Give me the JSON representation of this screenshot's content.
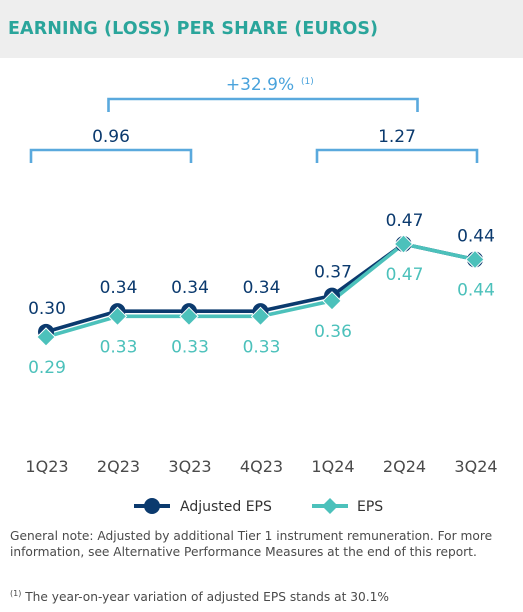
{
  "title": "EARNING (LOSS) PER SHARE (EUROS)",
  "chart_data": {
    "type": "line",
    "categories": [
      "1Q23",
      "2Q23",
      "3Q23",
      "4Q23",
      "1Q24",
      "2Q24",
      "3Q24"
    ],
    "series": [
      {
        "name": "Adjusted EPS",
        "values": [
          0.3,
          0.34,
          0.34,
          0.34,
          0.37,
          0.47,
          0.44
        ],
        "color": "#0b3a6e",
        "marker": "circle"
      },
      {
        "name": "EPS",
        "values": [
          0.29,
          0.33,
          0.33,
          0.33,
          0.36,
          0.47,
          0.44
        ],
        "color": "#4cc1bb",
        "marker": "diamond"
      }
    ],
    "brackets": [
      {
        "label": "0.96",
        "from": "1Q23",
        "to": "3Q23",
        "color": "#5aa9dd",
        "label_color": "#0b3a6e"
      },
      {
        "label": "1.27",
        "from": "1Q24",
        "to": "3Q24",
        "color": "#5aa9dd",
        "label_color": "#0b3a6e"
      },
      {
        "label": "+32.9%",
        "sup": "(1)",
        "from": "2Q23",
        "to": "2Q24",
        "color": "#5aa9dd",
        "label_color": "#4aa3dc"
      }
    ],
    "legend_position": "bottom-center",
    "grid": false
  },
  "notes": {
    "general": "General note: Adjusted by additional Tier 1 instrument remuneration. For more information, see Alternative Performance Measures at the end of this report.",
    "footnote_mark": "(1)",
    "footnote": " The year-on-year variation of adjusted EPS stands at 30.1%"
  }
}
